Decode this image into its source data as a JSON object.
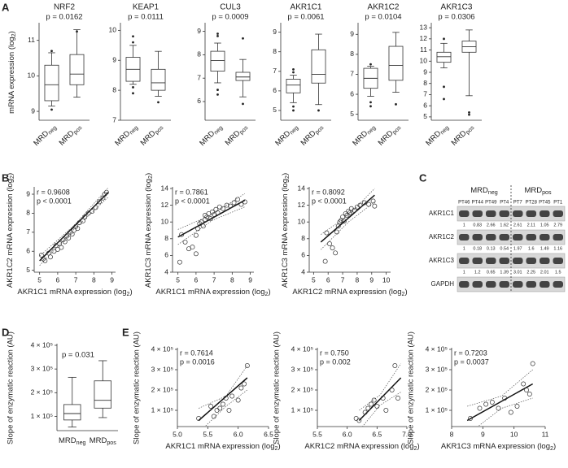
{
  "panel_letters": [
    "A",
    "B",
    "C",
    "D",
    "E"
  ],
  "chart_data": [
    {
      "type": "box",
      "title": "NRF2",
      "annotations": [
        "p = 0.0162"
      ],
      "ylabel": "mRNA expression (log2)",
      "categories": [
        "MRDneg",
        "MRDpos"
      ],
      "boxes": [
        {
          "whisker_low": 9.15,
          "q1": 9.3,
          "median": 9.75,
          "q3": 10.3,
          "whisker_high": 10.65,
          "outliers": [
            10.7,
            9.05
          ]
        },
        {
          "whisker_low": 9.4,
          "q1": 9.75,
          "median": 10.05,
          "q3": 10.6,
          "whisker_high": 11.3,
          "outliers": [
            11.25
          ]
        }
      ],
      "ylim": [
        8.75,
        11.45
      ],
      "yticks": [
        9,
        10,
        11
      ]
    },
    {
      "type": "box",
      "title": "KEAP1",
      "annotations": [
        "p = 0.0111"
      ],
      "categories": [
        "MRDneg",
        "MRDpos"
      ],
      "boxes": [
        {
          "whisker_low": 8.2,
          "q1": 8.3,
          "median": 8.7,
          "q3": 9.1,
          "whisker_high": 9.5,
          "outliers": [
            9.8,
            9.6,
            8.1,
            7.9
          ]
        },
        {
          "whisker_low": 7.8,
          "q1": 8.0,
          "median": 8.25,
          "q3": 8.7,
          "whisker_high": 9.3,
          "outliers": [
            7.6
          ]
        }
      ],
      "ylim": [
        7,
        10.2
      ],
      "yticks": [
        7,
        8,
        9,
        10
      ]
    },
    {
      "type": "box",
      "title": "CUL3",
      "annotations": [
        "p = 0.0009"
      ],
      "categories": [
        "MRDneg",
        "MRDpos"
      ],
      "boxes": [
        {
          "whisker_low": 6.8,
          "q1": 7.3,
          "median": 7.75,
          "q3": 8.15,
          "whisker_high": 8.5,
          "outliers": [
            8.9,
            8.8,
            6.5,
            6.3
          ]
        },
        {
          "whisker_low": 6.2,
          "q1": 6.9,
          "median": 7.05,
          "q3": 7.25,
          "whisker_high": 7.8,
          "outliers": [
            8.7,
            5.9
          ]
        }
      ],
      "ylim": [
        5.2,
        9.3
      ],
      "yticks": [
        6,
        7,
        8,
        9
      ]
    },
    {
      "type": "box",
      "title": "AKR1C1",
      "annotations": [
        "p = 0.0061"
      ],
      "categories": [
        "MRDneg",
        "MRDpos"
      ],
      "boxes": [
        {
          "whisker_low": 5.4,
          "q1": 5.9,
          "median": 6.3,
          "q3": 6.6,
          "whisker_high": 6.8,
          "outliers": [
            7.1,
            6.95,
            5.2,
            5.0
          ]
        },
        {
          "whisker_low": 5.3,
          "q1": 6.4,
          "median": 6.85,
          "q3": 8.1,
          "whisker_high": 8.9,
          "outliers": [
            5.0
          ]
        }
      ],
      "ylim": [
        4.5,
        9.4
      ],
      "yticks": [
        5,
        6,
        7,
        8,
        9
      ]
    },
    {
      "type": "box",
      "title": "AKR1C2",
      "annotations": [
        "p = 0.0104"
      ],
      "categories": [
        "MRDneg",
        "MRDpos"
      ],
      "boxes": [
        {
          "whisker_low": 5.9,
          "q1": 6.3,
          "median": 6.8,
          "q3": 7.3,
          "whisker_high": 7.4,
          "outliers": [
            7.5,
            5.6,
            5.4
          ]
        },
        {
          "whisker_low": 6.1,
          "q1": 6.7,
          "median": 7.45,
          "q3": 8.4,
          "whisker_high": 9.1,
          "outliers": [
            5.5
          ]
        }
      ],
      "ylim": [
        4.7,
        9.5
      ],
      "yticks": [
        5,
        6,
        7,
        8,
        9
      ]
    },
    {
      "type": "box",
      "title": "AKR1C3",
      "annotations": [
        "p = 0.0306"
      ],
      "categories": [
        "MRDneg",
        "MRDpos"
      ],
      "boxes": [
        {
          "whisker_low": 9.4,
          "q1": 9.9,
          "median": 10.4,
          "q3": 10.8,
          "whisker_high": 11.6,
          "outliers": [
            12,
            7.7,
            6.6
          ]
        },
        {
          "whisker_low": 6.9,
          "q1": 10.8,
          "median": 11.3,
          "q3": 11.8,
          "whisker_high": 12.8,
          "outliers": [
            5.4,
            5.2
          ]
        }
      ],
      "ylim": [
        4.7,
        13.3
      ],
      "yticks": [
        5,
        6,
        7,
        8,
        9,
        10,
        11,
        12,
        13
      ]
    },
    {
      "type": "scatter",
      "annotations": [
        "r = 0.9608",
        "p < 0.0001"
      ],
      "xlabel": "AKR1C1 mRNA expression (log2)",
      "ylabel": "AKR1C2 mRNA expression (log2)",
      "x": [
        5.1,
        5.2,
        5.3,
        5.5,
        5.6,
        5.8,
        5.9,
        6.0,
        6.1,
        6.2,
        6.3,
        6.4,
        6.5,
        6.6,
        6.7,
        6.8,
        6.9,
        7.0,
        7.1,
        7.2,
        7.4,
        7.5,
        7.7,
        7.9,
        8.1,
        8.3,
        8.5,
        8.6,
        8.7
      ],
      "y": [
        5.8,
        5.6,
        5.5,
        5.9,
        5.7,
        6.0,
        6.3,
        6.1,
        6.4,
        6.2,
        6.6,
        6.5,
        6.8,
        6.7,
        7.0,
        6.9,
        7.1,
        7.3,
        7.2,
        7.5,
        7.6,
        7.8,
        8.0,
        8.1,
        8.3,
        8.6,
        8.8,
        9.0,
        9.1
      ],
      "fit": {
        "x": [
          5.0,
          8.8
        ],
        "y": [
          5.5,
          9.1
        ]
      },
      "ci_upper": {
        "x": [
          5.0,
          6.9,
          8.8
        ],
        "y": [
          5.75,
          7.35,
          9.35
        ]
      },
      "ci_lower": {
        "x": [
          5.0,
          6.9,
          8.8
        ],
        "y": [
          5.25,
          7.15,
          8.85
        ]
      },
      "xlim": [
        4.7,
        9.2
      ],
      "ylim": [
        4.9,
        9.3
      ],
      "xticks": [
        5,
        6,
        7,
        8,
        9
      ],
      "yticks": [
        5,
        6,
        7,
        8,
        9
      ]
    },
    {
      "type": "scatter",
      "annotations": [
        "r = 0.7861",
        "p < 0.0001"
      ],
      "xlabel": "AKR1C1 mRNA expression (log2)",
      "ylabel": "AKR1C3 mRNA expression (log2)",
      "x": [
        5.1,
        5.2,
        5.4,
        5.6,
        5.8,
        6.0,
        6.0,
        6.1,
        6.2,
        6.3,
        6.4,
        6.5,
        6.5,
        6.6,
        6.7,
        6.8,
        6.9,
        7.0,
        7.1,
        7.2,
        7.3,
        7.5,
        7.7,
        7.9,
        8.1,
        8.3,
        8.5,
        8.7
      ],
      "y": [
        5.2,
        8.5,
        7.6,
        6.8,
        7.0,
        6.2,
        8.4,
        9.2,
        9.8,
        10.0,
        9.5,
        10.3,
        10.8,
        10.6,
        11.0,
        10.4,
        11.2,
        10.9,
        11.5,
        11.1,
        11.8,
        11.6,
        12.0,
        11.9,
        12.3,
        12.7,
        12.1,
        12.4
      ],
      "fit": {
        "x": [
          5.0,
          8.7
        ],
        "y": [
          8.2,
          12.6
        ]
      },
      "ci_upper": {
        "x": [
          5.0,
          6.9,
          8.7
        ],
        "y": [
          9.1,
          10.9,
          13.4
        ]
      },
      "ci_lower": {
        "x": [
          5.0,
          6.9,
          8.7
        ],
        "y": [
          7.3,
          10.2,
          11.8
        ]
      },
      "xlim": [
        4.7,
        9.2
      ],
      "ylim": [
        4,
        14
      ],
      "xticks": [
        5,
        6,
        7,
        8,
        9
      ],
      "yticks": [
        4,
        6,
        8,
        10,
        12,
        14
      ]
    },
    {
      "type": "scatter",
      "annotations": [
        "r = 0.8092",
        "p < 0.0001"
      ],
      "xlabel": "AKR1C2 mRNA expression (log2)",
      "ylabel": "AKR1C3 mRNA expression (log2)",
      "x": [
        5.8,
        5.9,
        6.1,
        6.3,
        6.5,
        6.6,
        6.7,
        6.8,
        6.9,
        7.0,
        7.1,
        7.2,
        7.3,
        7.4,
        7.5,
        7.6,
        7.8,
        8.0,
        8.2,
        8.5,
        8.8,
        9.1,
        9.2
      ],
      "y": [
        5.3,
        8.7,
        7.4,
        6.9,
        6.3,
        8.8,
        9.5,
        10.0,
        10.2,
        10.6,
        10.1,
        11.0,
        10.8,
        11.3,
        11.1,
        11.6,
        11.4,
        11.8,
        12.0,
        12.3,
        12.1,
        12.5,
        11.9
      ],
      "fit": {
        "x": [
          5.5,
          9.2
        ],
        "y": [
          7.6,
          13.2
        ]
      },
      "ci_upper": {
        "x": [
          5.5,
          7.4,
          9.2
        ],
        "y": [
          8.5,
          10.8,
          14.0
        ]
      },
      "ci_lower": {
        "x": [
          5.5,
          7.4,
          9.2
        ],
        "y": [
          6.7,
          10.0,
          12.4
        ]
      },
      "xlim": [
        4.7,
        10.3
      ],
      "ylim": [
        4,
        14
      ],
      "xticks": [
        5,
        6,
        7,
        8,
        9,
        10
      ],
      "yticks": [
        4,
        6,
        8,
        10,
        12,
        14
      ]
    },
    {
      "type": "box",
      "annotations": [
        "p = 0.031"
      ],
      "ylabel": "Slope of enzymatic reaction (AU)",
      "categories": [
        "MRDneg",
        "MRDpos"
      ],
      "boxes": [
        {
          "whisker_low": 55000,
          "q1": 85000,
          "median": 112000,
          "q3": 150000,
          "whisker_high": 265000,
          "outliers": []
        },
        {
          "whisker_low": 95000,
          "q1": 135000,
          "median": 168000,
          "q3": 250000,
          "whisker_high": 335000,
          "outliers": []
        }
      ],
      "ylim": [
        40000,
        400000
      ],
      "yticks": [
        {
          "value": 100000,
          "label": "1 × 10⁵"
        },
        {
          "value": 200000,
          "label": "2 × 10⁵"
        },
        {
          "value": 300000,
          "label": "3 × 10⁵"
        },
        {
          "value": 400000,
          "label": "4 × 10⁵"
        }
      ]
    },
    {
      "type": "scatter",
      "annotations": [
        "r = 0.7614",
        "p = 0.0016"
      ],
      "xlabel": "AKR1C1 mRNA expression (log2)",
      "ylabel": "Slope of enzymatic reaction (AU)",
      "x": [
        5.35,
        5.55,
        5.6,
        5.65,
        5.7,
        5.75,
        5.8,
        5.85,
        5.9,
        6.0,
        6.05,
        6.1,
        6.15
      ],
      "y": [
        60000,
        120000,
        70000,
        100000,
        110000,
        130000,
        160000,
        100000,
        170000,
        150000,
        210000,
        230000,
        320000
      ],
      "fit": {
        "x": [
          5.35,
          6.15
        ],
        "y": [
          50000,
          260000
        ]
      },
      "ci_upper": {
        "x": [
          5.35,
          5.8,
          6.15
        ],
        "y": [
          110000,
          170000,
          320000
        ]
      },
      "ci_lower": {
        "x": [
          5.35,
          5.8,
          6.15
        ],
        "y": [
          -10000,
          120000,
          200000
        ]
      },
      "xlim": [
        5.0,
        6.5
      ],
      "ylim": [
        20000,
        400000
      ],
      "xticks": [
        {
          "value": 5,
          "label": "5.0"
        },
        5.5,
        {
          "value": 6,
          "label": "6.0"
        },
        6.5
      ],
      "yticks": [
        {
          "value": 100000,
          "label": "1 × 10⁵"
        },
        {
          "value": 200000,
          "label": "2 × 10⁵"
        },
        {
          "value": 300000,
          "label": "3 × 10⁵"
        },
        {
          "value": 400000,
          "label": "4 × 10⁵"
        }
      ]
    },
    {
      "type": "scatter",
      "annotations": [
        "r = 0.750",
        "p = 0.002"
      ],
      "xlabel": "AKR1C2 mRNA expression (log2)",
      "ylabel": "Slope of enzymatic reaction (AU)",
      "x": [
        6.15,
        6.2,
        6.3,
        6.35,
        6.4,
        6.45,
        6.5,
        6.6,
        6.65,
        6.75,
        6.8,
        6.85
      ],
      "y": [
        60000,
        50000,
        90000,
        110000,
        130000,
        150000,
        120000,
        160000,
        100000,
        200000,
        320000,
        160000
      ],
      "fit": {
        "x": [
          6.2,
          6.9
        ],
        "y": [
          50000,
          260000
        ]
      },
      "ci_upper": {
        "x": [
          6.2,
          6.55,
          6.9
        ],
        "y": [
          100000,
          175000,
          330000
        ]
      },
      "ci_lower": {
        "x": [
          6.2,
          6.55,
          6.9
        ],
        "y": [
          0,
          125000,
          190000
        ]
      },
      "xlim": [
        5.5,
        7.0
      ],
      "ylim": [
        20000,
        400000
      ],
      "xticks": [
        5.5,
        {
          "value": 6,
          "label": "6.0"
        },
        6.5,
        {
          "value": 7,
          "label": "7.0"
        }
      ],
      "yticks": [
        {
          "value": 100000,
          "label": "1 × 10⁵"
        },
        {
          "value": 200000,
          "label": "2 × 10⁵"
        },
        {
          "value": 300000,
          "label": "3 × 10⁵"
        },
        {
          "value": 400000,
          "label": "4 × 10⁵"
        }
      ]
    },
    {
      "type": "scatter",
      "annotations": [
        "r = 0.7203",
        "p = 0.0037"
      ],
      "xlabel": "AKR1C3 mRNA expression (log2)",
      "ylabel": "Slope of enzymatic reaction (AU)",
      "x": [
        8.6,
        8.9,
        9.1,
        9.3,
        9.5,
        9.7,
        9.9,
        10.1,
        10.3,
        10.4,
        10.5,
        10.6
      ],
      "y": [
        60000,
        110000,
        130000,
        140000,
        110000,
        160000,
        90000,
        120000,
        230000,
        200000,
        180000,
        330000
      ],
      "fit": {
        "x": [
          8.5,
          10.6
        ],
        "y": [
          50000,
          230000
        ]
      },
      "ci_upper": {
        "x": [
          8.5,
          9.6,
          10.6
        ],
        "y": [
          120000,
          170000,
          300000
        ]
      },
      "ci_lower": {
        "x": [
          8.5,
          9.6,
          10.6
        ],
        "y": [
          -20000,
          110000,
          160000
        ]
      },
      "xlim": [
        8,
        11
      ],
      "ylim": [
        20000,
        400000
      ],
      "xticks": [
        8,
        9,
        10,
        11
      ],
      "yticks": [
        {
          "value": 100000,
          "label": "1 × 10⁵"
        },
        {
          "value": 200000,
          "label": "2 × 10⁵"
        },
        {
          "value": 300000,
          "label": "3 × 10⁵"
        },
        {
          "value": 400000,
          "label": "4 × 10⁵"
        }
      ]
    }
  ],
  "blot": {
    "groups": [
      "MRDneg",
      "MRDpos"
    ],
    "lanes": [
      "PT46",
      "PT44",
      "PT49",
      "PT4",
      "PT7",
      "PT28",
      "PT45",
      "PT1"
    ],
    "rows": [
      {
        "label": "AKR1C1",
        "quant": [
          1,
          0.83,
          2.66,
          1.62,
          2.61,
          2.11,
          1.05,
          2.79
        ]
      },
      {
        "label": "AKR1C2",
        "quant": [
          1,
          0.18,
          0.13,
          0.54,
          1.97,
          1.6,
          1.49,
          1.16
        ]
      },
      {
        "label": "AKR1C3",
        "quant": [
          1,
          1.2,
          0.65,
          1.39,
          3.01,
          2.25,
          2.01,
          1.5
        ]
      },
      {
        "label": "GAPDH",
        "quant": []
      }
    ]
  }
}
